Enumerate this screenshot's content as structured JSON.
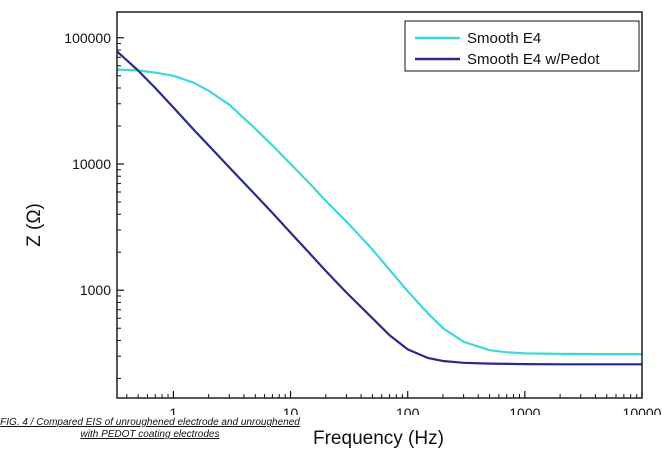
{
  "caption": {
    "line1": "FIG. 4 / Compared EIS of unroughened electrode and unroughened",
    "line2": "with PEDOT coating electrodes"
  },
  "chart_data": {
    "type": "line",
    "title": "",
    "xlabel": "Frequency (Hz)",
    "ylabel": "Z (Ω)",
    "xscale": "log",
    "yscale": "log",
    "xlim": [
      0.33,
      10000
    ],
    "ylim": [
      140,
      160000
    ],
    "xticks": [
      "1",
      "10",
      "100",
      "1000",
      "10000"
    ],
    "yticks": [
      "1000",
      "10000",
      "100000"
    ],
    "legend_position": "top-right",
    "series": [
      {
        "name": "Smooth E4",
        "color": "#3ed8d8",
        "x": [
          0.33,
          0.5,
          0.7,
          1,
          1.5,
          2,
          3,
          5,
          7,
          10,
          15,
          20,
          30,
          50,
          70,
          100,
          150,
          200,
          300,
          500,
          700,
          1000,
          2000,
          5000,
          10000
        ],
        "y": [
          56000,
          55000,
          53000,
          50000,
          44000,
          38000,
          29500,
          19000,
          14000,
          10000,
          6800,
          5100,
          3500,
          2100,
          1450,
          980,
          650,
          500,
          390,
          335,
          322,
          316,
          313,
          312,
          312
        ]
      },
      {
        "name": "Smooth E4 w/Pedot",
        "color": "#2a2a8c",
        "x": [
          0.33,
          0.5,
          0.7,
          1,
          1.5,
          2,
          3,
          5,
          7,
          10,
          15,
          20,
          30,
          50,
          70,
          100,
          150,
          200,
          300,
          500,
          1000,
          2000,
          5000,
          10000
        ],
        "y": [
          78000,
          55000,
          40000,
          28000,
          18600,
          14000,
          9400,
          5700,
          4100,
          2850,
          1900,
          1420,
          960,
          600,
          440,
          340,
          290,
          275,
          266,
          262,
          260,
          259,
          259,
          259
        ]
      }
    ]
  }
}
